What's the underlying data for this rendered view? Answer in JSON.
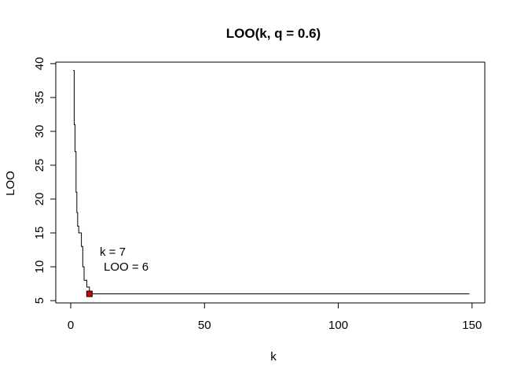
{
  "chart_data": {
    "type": "line",
    "title": "LOO(k, q = 0.6)",
    "xlabel": "k",
    "ylabel": "LOO",
    "xlim": [
      1,
      149
    ],
    "ylim": [
      6,
      39
    ],
    "xticks": [
      0,
      50,
      100,
      150
    ],
    "yticks": [
      5,
      10,
      15,
      20,
      25,
      30,
      35,
      40
    ],
    "grid": false,
    "legend": "none",
    "series": [
      {
        "step": "post",
        "x": [
          1,
          1.3,
          1.6,
          2,
          2.3,
          2.6,
          3,
          3.5,
          4,
          4.5,
          5,
          5.5,
          6,
          6.5,
          7,
          149
        ],
        "y": [
          39,
          31,
          27,
          21,
          18,
          16,
          15,
          15,
          13,
          10,
          8,
          8,
          7,
          7,
          6,
          6
        ],
        "color": "#000000"
      }
    ],
    "highlight": {
      "x": 7,
      "y": 6,
      "color": "#dd0000"
    },
    "annotations": [
      {
        "id": "k",
        "text": "k =  7"
      },
      {
        "id": "loo",
        "text": "LOO =  6"
      }
    ]
  }
}
